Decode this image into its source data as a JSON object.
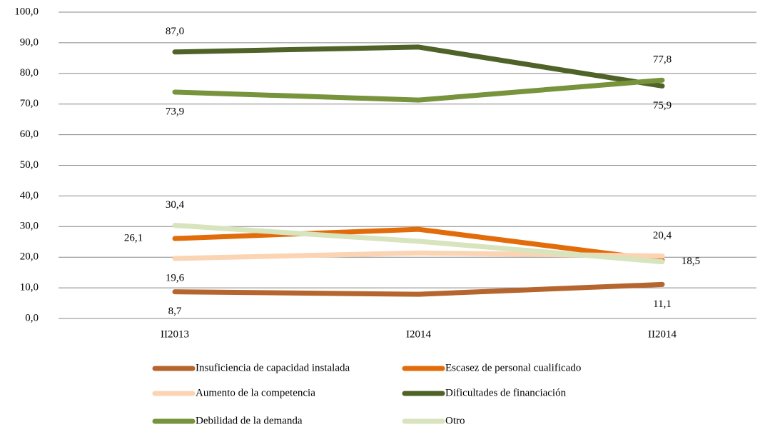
{
  "chart_data": {
    "type": "line",
    "categories": [
      "II2013",
      "I2014",
      "II2014"
    ],
    "series": [
      {
        "name": "Insuficiencia de capacidad instalada",
        "color": "#b5652d",
        "values": [
          8.7,
          7.9,
          11.1
        ],
        "value_labels": [
          "8,7",
          null,
          "11,1"
        ]
      },
      {
        "name": "Escasez de personal cualificado",
        "color": "#e36c0a",
        "values": [
          26.1,
          29.1,
          19.0
        ],
        "value_labels": [
          "26,1",
          null,
          null
        ]
      },
      {
        "name": "Aumento de la competencia",
        "color": "#fbd4b4",
        "values": [
          19.6,
          21.4,
          20.4
        ],
        "value_labels": [
          "19,6",
          null,
          "20,4"
        ]
      },
      {
        "name": "Dificultades de financiación",
        "color": "#4f6228",
        "values": [
          87.0,
          88.6,
          75.9
        ],
        "value_labels": [
          "87,0",
          null,
          "75,9"
        ]
      },
      {
        "name": "Debilidad de la demanda",
        "color": "#77933c",
        "values": [
          73.9,
          71.3,
          77.8
        ],
        "value_labels": [
          "73,9",
          null,
          "77,8"
        ]
      },
      {
        "name": "Otro",
        "color": "#d7e4bd",
        "values": [
          30.4,
          25.2,
          18.5
        ],
        "value_labels": [
          "30,4",
          null,
          "18,5"
        ]
      }
    ],
    "ylim": [
      0,
      100
    ],
    "yticks": [
      {
        "value": 0,
        "label": "0,0"
      },
      {
        "value": 10,
        "label": "10,0"
      },
      {
        "value": 20,
        "label": "20,0"
      },
      {
        "value": 30,
        "label": "30,0"
      },
      {
        "value": 40,
        "label": "40,0"
      },
      {
        "value": 50,
        "label": "50,0"
      },
      {
        "value": 60,
        "label": "60,0"
      },
      {
        "value": 70,
        "label": "70,0"
      },
      {
        "value": 80,
        "label": "80,0"
      },
      {
        "value": 90,
        "label": "90,0"
      },
      {
        "value": 100,
        "label": "100,0"
      }
    ],
    "grid": true,
    "legend": "bottom"
  }
}
